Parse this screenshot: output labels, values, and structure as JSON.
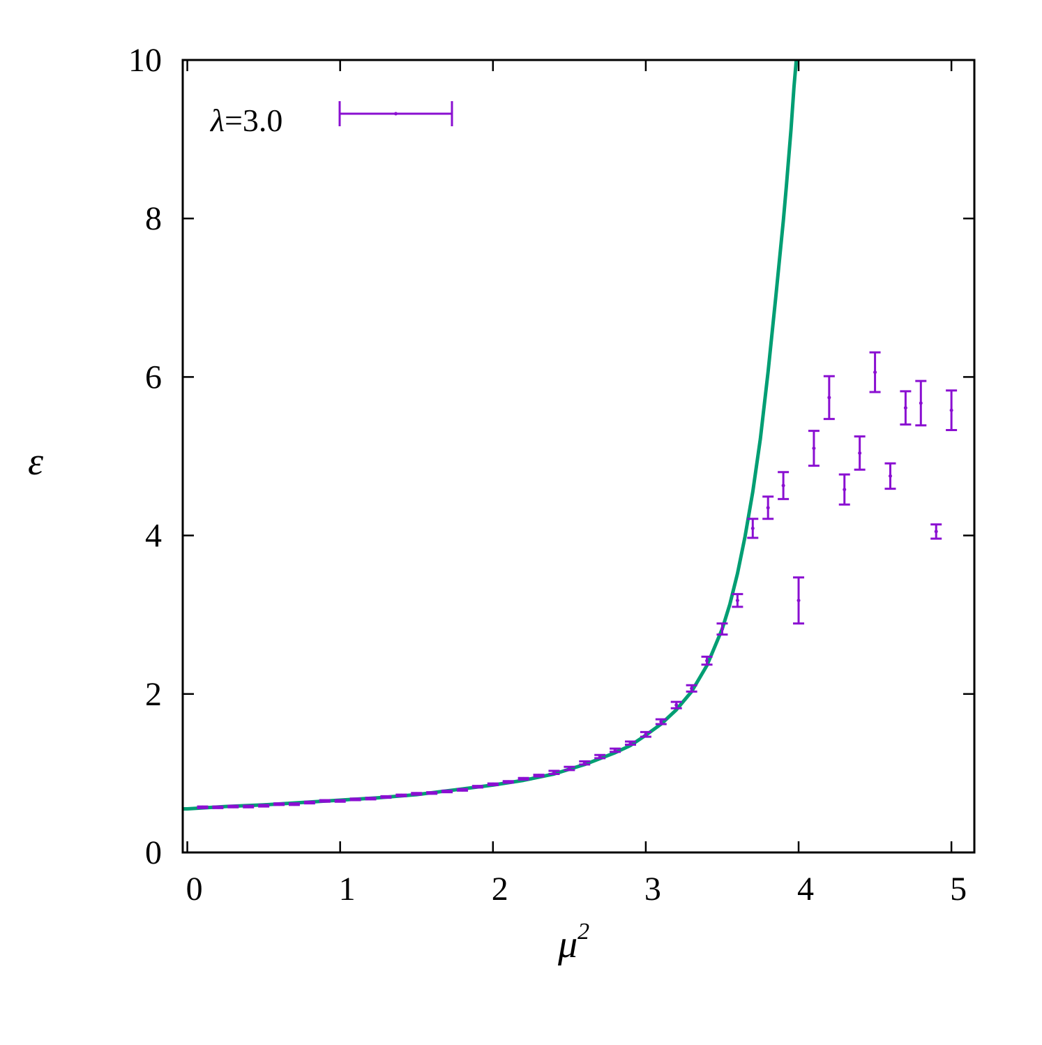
{
  "chart_data": {
    "type": "scatter",
    "xlabel": "μ",
    "xlabel_sup": "2",
    "ylabel": "ε",
    "xlim": [
      -0.03,
      5.15
    ],
    "ylim": [
      0,
      10
    ],
    "x_ticks": [
      "0",
      "1",
      "2",
      "3",
      "4",
      "5"
    ],
    "y_ticks": [
      "0",
      "2",
      "4",
      "6",
      "8",
      "10"
    ],
    "grid": false,
    "legend": {
      "placement": "top-left",
      "symbol": "λ",
      "text": "=3.0"
    },
    "colors": {
      "points": "#8a0fd1",
      "curve": "#009e73"
    },
    "series": [
      {
        "name": "λ=3.0",
        "kind": "errorbar",
        "x": [
          0.1,
          0.2,
          0.3,
          0.4,
          0.5,
          0.6,
          0.7,
          0.8,
          0.9,
          1.0,
          1.1,
          1.2,
          1.3,
          1.4,
          1.5,
          1.6,
          1.7,
          1.8,
          1.9,
          2.0,
          2.1,
          2.2,
          2.3,
          2.4,
          2.5,
          2.6,
          2.7,
          2.8,
          2.9,
          3.0,
          3.1,
          3.2,
          3.3,
          3.4,
          3.5,
          3.6,
          3.7,
          3.8,
          3.9,
          4.0,
          4.1,
          4.2,
          4.3,
          4.4,
          4.5,
          4.6,
          4.7,
          4.8,
          4.9,
          5.0
        ],
        "y": [
          0.57,
          0.57,
          0.58,
          0.58,
          0.59,
          0.61,
          0.61,
          0.63,
          0.65,
          0.65,
          0.67,
          0.68,
          0.7,
          0.72,
          0.74,
          0.75,
          0.77,
          0.79,
          0.83,
          0.86,
          0.89,
          0.93,
          0.97,
          1.01,
          1.06,
          1.13,
          1.21,
          1.29,
          1.38,
          1.49,
          1.65,
          1.86,
          2.07,
          2.42,
          2.82,
          3.18,
          4.09,
          4.35,
          4.63,
          3.18,
          5.1,
          5.74,
          4.58,
          5.04,
          6.06,
          4.75,
          5.61,
          5.67,
          4.05,
          5.58
        ],
        "err": [
          0.01,
          0.01,
          0.01,
          0.01,
          0.01,
          0.01,
          0.01,
          0.01,
          0.01,
          0.01,
          0.01,
          0.01,
          0.01,
          0.01,
          0.01,
          0.01,
          0.01,
          0.01,
          0.01,
          0.01,
          0.01,
          0.01,
          0.01,
          0.02,
          0.02,
          0.02,
          0.02,
          0.02,
          0.02,
          0.03,
          0.03,
          0.04,
          0.04,
          0.05,
          0.07,
          0.08,
          0.12,
          0.14,
          0.17,
          0.29,
          0.22,
          0.27,
          0.19,
          0.21,
          0.25,
          0.16,
          0.21,
          0.28,
          0.09,
          0.25
        ]
      },
      {
        "kind": "curve",
        "x": [
          -0.03,
          0.0,
          0.25,
          0.5,
          0.75,
          1.0,
          1.25,
          1.5,
          1.75,
          2.0,
          2.2,
          2.4,
          2.6,
          2.8,
          2.9,
          3.0,
          3.1,
          3.2,
          3.3,
          3.4,
          3.5,
          3.55,
          3.6,
          3.65,
          3.7,
          3.75,
          3.8,
          3.85,
          3.9,
          3.92,
          3.95,
          3.97,
          3.985
        ],
        "y": [
          0.55,
          0.55,
          0.58,
          0.6,
          0.63,
          0.66,
          0.69,
          0.73,
          0.79,
          0.85,
          0.91,
          0.99,
          1.11,
          1.26,
          1.35,
          1.48,
          1.62,
          1.8,
          2.03,
          2.36,
          2.82,
          3.13,
          3.52,
          3.99,
          4.55,
          5.22,
          6.06,
          7.0,
          7.97,
          8.41,
          9.12,
          9.66,
          10.0
        ]
      }
    ]
  }
}
